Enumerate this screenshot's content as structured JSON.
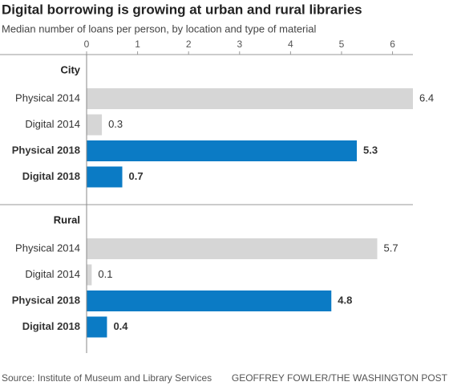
{
  "chart_data": {
    "type": "bar",
    "title": "Digital borrowing is growing at urban and rural libraries",
    "subtitle": "Median number of loans per person, by location and type of material",
    "xlim": [
      0,
      6.4
    ],
    "xticks": [
      0,
      1,
      2,
      3,
      4,
      5,
      6
    ],
    "groups": [
      {
        "name": "City",
        "categories": [
          "Physical 2014",
          "Digital 2014",
          "Physical 2018",
          "Digital 2018"
        ],
        "values": [
          6.4,
          0.3,
          5.3,
          0.7
        ],
        "colors": [
          "#d6d6d6",
          "#d6d6d6",
          "#0b7bc5",
          "#0b7bc5"
        ],
        "bold": [
          false,
          false,
          true,
          true
        ]
      },
      {
        "name": "Rural",
        "categories": [
          "Physical 2014",
          "Digital 2014",
          "Physical 2018",
          "Digital 2018"
        ],
        "values": [
          5.7,
          0.1,
          4.8,
          0.4
        ],
        "colors": [
          "#d6d6d6",
          "#d6d6d6",
          "#0b7bc5",
          "#0b7bc5"
        ],
        "bold": [
          false,
          false,
          true,
          true
        ]
      }
    ],
    "source": "Source: Institute of Museum and Library Services",
    "credit": "GEOFFREY FOWLER/THE WASHINGTON POST"
  }
}
